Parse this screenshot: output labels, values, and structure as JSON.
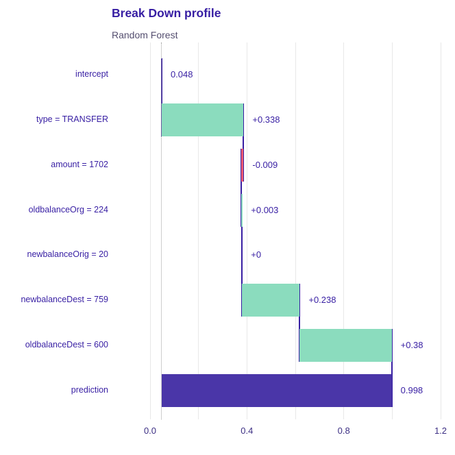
{
  "title": "Break Down profile",
  "subtitle": "Random Forest",
  "chart_data": {
    "type": "bar",
    "subtype": "breakdown-waterfall",
    "orientation": "horizontal",
    "title": "Break Down profile",
    "subtitle": "Random Forest",
    "baseline": 0.048,
    "x_axis": {
      "min": 0,
      "max": 1.2,
      "tick_labels": [
        "0.0",
        "0.4",
        "0.8",
        "1.2"
      ],
      "tick_values": [
        0,
        0.4,
        0.8,
        1.2
      ],
      "gridline_step": 0.2,
      "grid": true
    },
    "rows": [
      {
        "label": "intercept",
        "contribution": 0.048,
        "start": 0.048,
        "end": 0.048,
        "value_label": "0.048",
        "kind": "intercept"
      },
      {
        "label": "type = TRANSFER",
        "contribution": 0.338,
        "start": 0.048,
        "end": 0.386,
        "value_label": "+0.338",
        "kind": "positive"
      },
      {
        "label": "amount = 1702",
        "contribution": -0.009,
        "start": 0.386,
        "end": 0.377,
        "value_label": "-0.009",
        "kind": "negative"
      },
      {
        "label": "oldbalanceOrg = 224",
        "contribution": 0.003,
        "start": 0.377,
        "end": 0.38,
        "value_label": "+0.003",
        "kind": "positive"
      },
      {
        "label": "newbalanceOrig = 20",
        "contribution": 0,
        "start": 0.38,
        "end": 0.38,
        "value_label": "+0",
        "kind": "positive"
      },
      {
        "label": "newbalanceDest = 759",
        "contribution": 0.238,
        "start": 0.38,
        "end": 0.618,
        "value_label": "+0.238",
        "kind": "positive"
      },
      {
        "label": "oldbalanceDest = 600",
        "contribution": 0.38,
        "start": 0.618,
        "end": 0.998,
        "value_label": "+0.38",
        "kind": "positive"
      },
      {
        "label": "prediction",
        "contribution": 0.998,
        "start": 0.048,
        "end": 0.998,
        "value_label": "0.998",
        "kind": "prediction"
      }
    ],
    "legend": null,
    "colors": {
      "positive": "#8bdcbe",
      "negative": "#f05a71",
      "prediction": "#4a36a8",
      "connector": "#371ea3",
      "title": "#371ea3",
      "subtitle": "#544e6f",
      "label_text": "#371ea3",
      "value_text": "#371ea3",
      "axis_text": "#3b2e83",
      "gridline": "#e8e8e8",
      "baseline_dotted": "#9b9b9b",
      "background": "#ffffff"
    }
  }
}
